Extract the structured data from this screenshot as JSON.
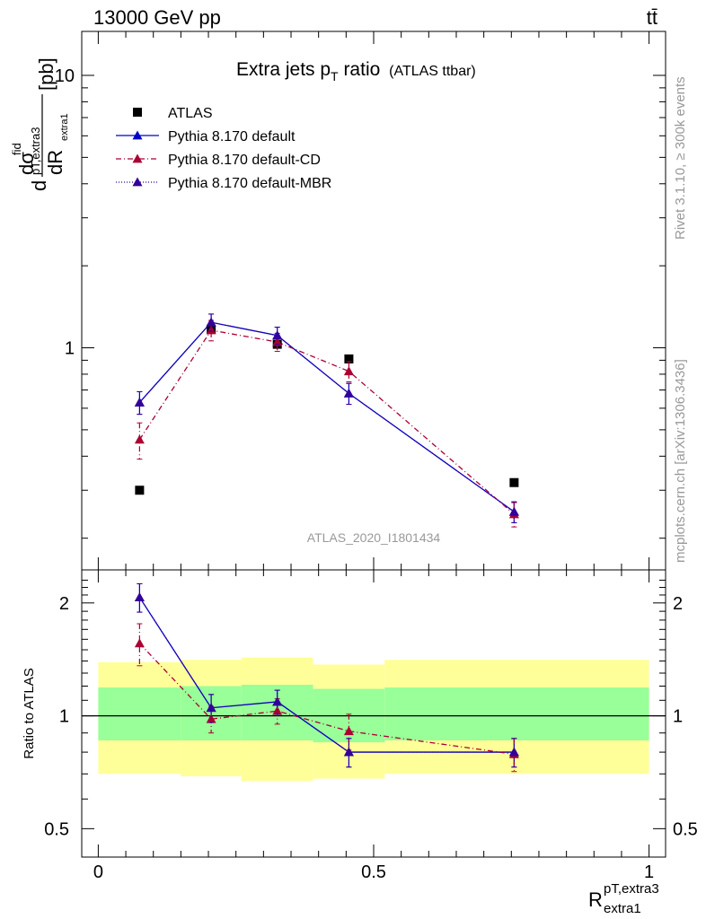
{
  "header": {
    "energy_label": "13000 GeV pp",
    "process_label": "tt̄"
  },
  "side_labels": {
    "rivet": "Rivet 3.1.10, ≥ 300k events",
    "source": "mcplots.cern.ch [arXiv:1306.3436]"
  },
  "colors": {
    "atlas": "#000000",
    "default": "#0000cc",
    "default_cd": "#aa0033",
    "default_mbr": "#330099",
    "band_inner": "#99ff99",
    "band_outer": "#ffff99",
    "watermark": "#999999"
  },
  "chart_data": [
    {
      "type": "scatter",
      "title": "Extra jets p",
      "title_sub": "T",
      "title_rest": " ratio",
      "title_note": "(ATLAS ttbar)",
      "analysis_label": "ATLAS_2020_I1801434",
      "ylabel": {
        "d_top": "d",
        "dsigma": "dσ",
        "fid": "fid",
        "sub_num": "pT,extra3",
        "d_bottom": "d",
        "dR": "dR",
        "sub_den": "extra1",
        "unit": "[pb]"
      },
      "yscale": "log",
      "xlim": [
        -0.03,
        1.03
      ],
      "ylim": [
        0.153,
        14.5
      ],
      "y_tick_labels": [
        "1",
        "10"
      ],
      "legend_placement": "top-left",
      "series": [
        {
          "name": "ATLAS",
          "x": [
            0.075,
            0.205,
            0.325,
            0.455,
            0.755
          ],
          "y": [
            0.3,
            1.17,
            1.03,
            0.91,
            0.32
          ],
          "err": [
            0,
            0,
            0,
            0,
            0
          ],
          "marker": "square"
        },
        {
          "name": "Pythia 8.170 default",
          "x": [
            0.075,
            0.205,
            0.325,
            0.455,
            0.755
          ],
          "y": [
            0.63,
            1.24,
            1.11,
            0.68,
            0.25
          ],
          "err": [
            0.06,
            0.09,
            0.08,
            0.06,
            0.022
          ],
          "marker": "triangle",
          "line": "solid"
        },
        {
          "name": "Pythia 8.170 default-CD",
          "x": [
            0.075,
            0.205,
            0.325,
            0.455,
            0.755
          ],
          "y": [
            0.46,
            1.16,
            1.05,
            0.82,
            0.245
          ],
          "err": [
            0.07,
            0.1,
            0.08,
            0.07,
            0.025
          ],
          "marker": "triangle",
          "line": "dashdot"
        },
        {
          "name": "Pythia 8.170 default-MBR",
          "x": [
            0.075,
            0.205,
            0.325,
            0.455,
            0.755
          ],
          "y": [
            0.63,
            1.24,
            1.11,
            0.68,
            0.25
          ],
          "err": [
            0.06,
            0.09,
            0.08,
            0.06,
            0.022
          ],
          "marker": "triangle",
          "line": "dotted"
        }
      ]
    },
    {
      "type": "scatter",
      "ylabel": "Ratio to ATLAS",
      "xlabel_main": "R",
      "xlabel_sup": "pT,extra3",
      "xlabel_sub": "extra1",
      "yscale": "log",
      "xlim": [
        -0.03,
        1.03
      ],
      "ylim": [
        0.42,
        2.45
      ],
      "x_tick_labels": [
        "0",
        "0.5",
        "1"
      ],
      "y_tick_labels": [
        "0.5",
        "1",
        "2"
      ],
      "bins": [
        0.0,
        0.15,
        0.26,
        0.39,
        0.52,
        1.0
      ],
      "band_inner": [
        [
          0.86,
          1.19
        ],
        [
          0.86,
          1.2
        ],
        [
          0.86,
          1.21
        ],
        [
          0.85,
          1.18
        ],
        [
          0.86,
          1.19
        ]
      ],
      "band_outer": [
        [
          0.7,
          1.39
        ],
        [
          0.69,
          1.41
        ],
        [
          0.67,
          1.43
        ],
        [
          0.68,
          1.37
        ],
        [
          0.7,
          1.41
        ]
      ],
      "series": [
        {
          "name": "Pythia 8.170 default",
          "x": [
            0.075,
            0.205,
            0.325,
            0.455,
            0.755
          ],
          "y": [
            2.07,
            1.05,
            1.09,
            0.8,
            0.8
          ],
          "err": [
            0.18,
            0.09,
            0.08,
            0.07,
            0.07
          ]
        },
        {
          "name": "Pythia 8.170 default-CD",
          "x": [
            0.075,
            0.205,
            0.325,
            0.455,
            0.755
          ],
          "y": [
            1.56,
            0.98,
            1.03,
            0.91,
            0.79
          ],
          "err": [
            0.2,
            0.08,
            0.08,
            0.1,
            0.08
          ]
        },
        {
          "name": "Pythia 8.170 default-MBR",
          "x": [
            0.075,
            0.205,
            0.325,
            0.455,
            0.755
          ],
          "y": [
            2.07,
            1.05,
            1.09,
            0.8,
            0.8
          ],
          "err": [
            0.18,
            0.09,
            0.08,
            0.07,
            0.07
          ]
        }
      ]
    }
  ]
}
